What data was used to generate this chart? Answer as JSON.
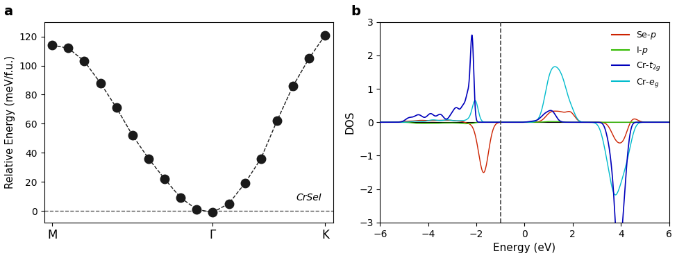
{
  "panel_a": {
    "ylabel": "Relative Energy (meV/f.u.)",
    "xtick_positions": [
      0,
      10,
      17
    ],
    "xlim": [
      -0.5,
      17.5
    ],
    "ylim": [
      -8,
      130
    ],
    "yticks": [
      0,
      20,
      40,
      60,
      80,
      100,
      120
    ],
    "annotation": "CrSeI",
    "x": [
      0,
      1,
      2,
      3,
      4,
      5,
      6,
      7,
      8,
      9,
      10,
      11,
      12,
      13,
      14,
      15,
      16,
      17
    ],
    "y": [
      114,
      112,
      103,
      88,
      71,
      52,
      36,
      22,
      9,
      1,
      -1,
      5,
      19,
      36,
      62,
      86,
      105,
      121
    ]
  },
  "panel_b": {
    "xlabel": "Energy (eV)",
    "ylabel": "DOS",
    "xlim": [
      -6,
      6
    ],
    "ylim": [
      -3,
      3
    ],
    "yticks": [
      -3,
      -2,
      -1,
      0,
      1,
      2,
      3
    ],
    "xticks": [
      -6,
      -4,
      -2,
      0,
      2,
      4,
      6
    ],
    "vline_x": -1.0,
    "colors": [
      "#cc2200",
      "#33bb00",
      "#0000bb",
      "#00bbcc"
    ]
  }
}
